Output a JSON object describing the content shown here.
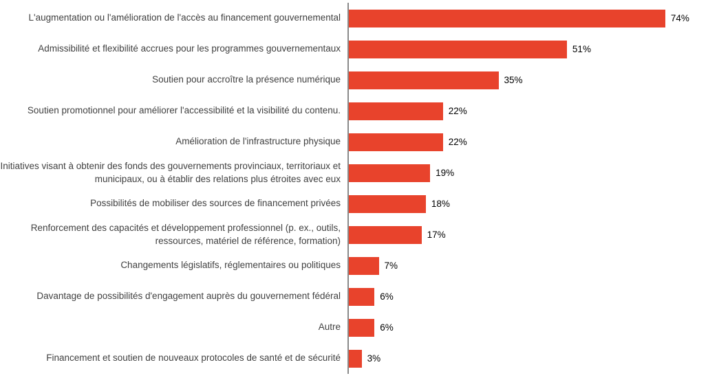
{
  "chart_data": {
    "type": "bar",
    "orientation": "horizontal",
    "title": "",
    "xlabel": "",
    "ylabel": "",
    "categories": [
      "L'augmentation ou l'amélioration de l'accès au financement gouvernemental",
      "Admissibilité et flexibilité accrues pour les programmes gouvernementaux",
      "Soutien pour accroître la présence numérique",
      "Soutien promotionnel pour améliorer l'accessibilité et la visibilité du contenu.",
      "Amélioration de l'infrastructure physique",
      "Initiatives visant à obtenir des fonds des gouvernements provinciaux, territoriaux et municipaux, ou à établir des relations plus étroites avec eux",
      "Possibilités de mobiliser des sources de financement privées",
      "Renforcement des capacités et développement professionnel (p. ex., outils, ressources, matériel de référence, formation)",
      "Changements législatifs, réglementaires ou politiques",
      "Davantage de possibilités d'engagement auprès du gouvernement fédéral",
      "Autre",
      "Financement et soutien de nouveaux protocoles de santé et de sécurité"
    ],
    "values": [
      74,
      51,
      35,
      22,
      22,
      19,
      18,
      17,
      7,
      6,
      6,
      3
    ],
    "value_labels": [
      "74%",
      "51%",
      "35%",
      "22%",
      "22%",
      "19%",
      "18%",
      "17%",
      "7%",
      "6%",
      "6%",
      "3%"
    ],
    "xlim": [
      0,
      84
    ],
    "grid": false,
    "legend": false,
    "bar_color": "#E8432C",
    "axis_color": "#898989",
    "label_color": "#404040",
    "value_color": "#000000"
  }
}
